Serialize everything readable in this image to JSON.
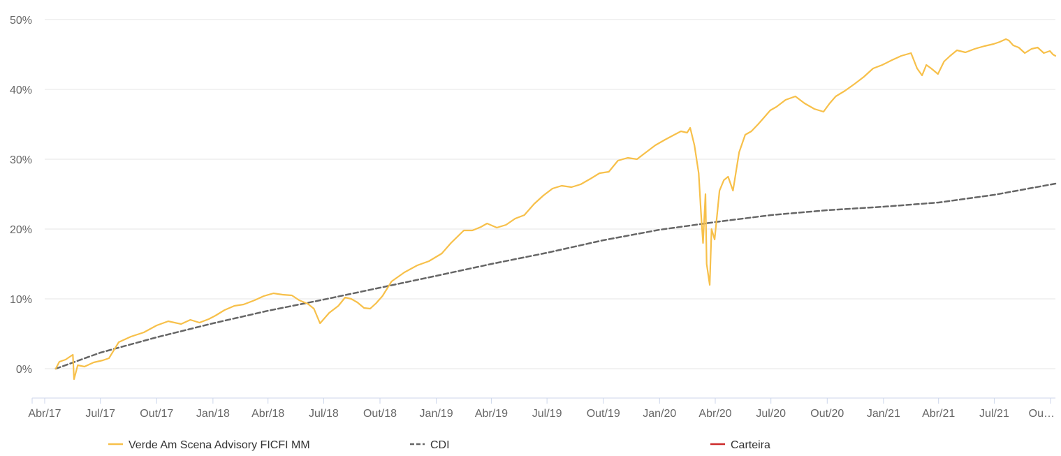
{
  "chart_data": {
    "type": "line",
    "title": "",
    "xlabel": "",
    "ylabel": "",
    "y_tick_labels": [
      "0%",
      "10%",
      "20%",
      "30%",
      "40%",
      "50%"
    ],
    "y_ticks": [
      0,
      10,
      20,
      30,
      40,
      50
    ],
    "ylim": [
      -4.2,
      51
    ],
    "x_tick_labels": [
      "Abr/17",
      "Jul/17",
      "Out/17",
      "Jan/18",
      "Abr/18",
      "Jul/18",
      "Out/18",
      "Jan/19",
      "Abr/19",
      "Jul/19",
      "Out/19",
      "Jan/20",
      "Abr/20",
      "Jul/20",
      "Out/20",
      "Jan/21",
      "Abr/21",
      "Jul/21",
      "Ou…"
    ],
    "x_ticks": [
      "2017-04-01",
      "2017-07-01",
      "2017-10-01",
      "2018-01-01",
      "2018-04-01",
      "2018-07-01",
      "2018-10-01",
      "2019-01-01",
      "2019-04-01",
      "2019-07-01",
      "2019-10-01",
      "2020-01-01",
      "2020-04-01",
      "2020-07-01",
      "2020-10-01",
      "2021-01-01",
      "2021-04-01",
      "2021-07-01",
      "2021-10-01"
    ],
    "xlim": [
      "2017-04-01",
      "2021-10-09"
    ],
    "grid": true,
    "legend_position": "bottom",
    "series": [
      {
        "name": "Verde Am Scena Advisory FICFI MM",
        "color": "#f7c04a",
        "style": "solid",
        "x": [
          "2017-04-19",
          "2017-04-25",
          "2017-05-05",
          "2017-05-17",
          "2017-05-19",
          "2017-05-25",
          "2017-06-05",
          "2017-06-20",
          "2017-07-05",
          "2017-07-15",
          "2017-07-31",
          "2017-08-20",
          "2017-09-10",
          "2017-10-01",
          "2017-10-20",
          "2017-11-10",
          "2017-11-25",
          "2017-12-10",
          "2017-12-25",
          "2018-01-05",
          "2018-01-20",
          "2018-02-05",
          "2018-02-20",
          "2018-03-10",
          "2018-03-25",
          "2018-04-10",
          "2018-04-25",
          "2018-05-10",
          "2018-05-22",
          "2018-06-05",
          "2018-06-15",
          "2018-06-25",
          "2018-07-10",
          "2018-07-25",
          "2018-08-05",
          "2018-08-15",
          "2018-08-25",
          "2018-09-05",
          "2018-09-15",
          "2018-09-25",
          "2018-10-05",
          "2018-10-20",
          "2018-11-10",
          "2018-12-01",
          "2018-12-20",
          "2019-01-10",
          "2019-01-25",
          "2019-02-15",
          "2019-03-01",
          "2019-03-15",
          "2019-03-25",
          "2019-04-10",
          "2019-04-25",
          "2019-05-10",
          "2019-05-25",
          "2019-06-10",
          "2019-06-25",
          "2019-07-10",
          "2019-07-25",
          "2019-08-10",
          "2019-08-25",
          "2019-09-10",
          "2019-09-25",
          "2019-10-10",
          "2019-10-25",
          "2019-11-10",
          "2019-11-25",
          "2019-12-10",
          "2019-12-25",
          "2020-01-10",
          "2020-01-25",
          "2020-02-05",
          "2020-02-15",
          "2020-02-20",
          "2020-02-27",
          "2020-03-05",
          "2020-03-09",
          "2020-03-12",
          "2020-03-16",
          "2020-03-18",
          "2020-03-23",
          "2020-03-26",
          "2020-03-31",
          "2020-04-08",
          "2020-04-15",
          "2020-04-22",
          "2020-04-30",
          "2020-05-10",
          "2020-05-20",
          "2020-05-30",
          "2020-06-10",
          "2020-06-20",
          "2020-06-30",
          "2020-07-10",
          "2020-07-25",
          "2020-08-10",
          "2020-08-25",
          "2020-09-10",
          "2020-09-25",
          "2020-10-05",
          "2020-10-15",
          "2020-10-30",
          "2020-11-15",
          "2020-11-30",
          "2020-12-15",
          "2020-12-30",
          "2021-01-15",
          "2021-01-30",
          "2021-02-15",
          "2021-02-25",
          "2021-03-05",
          "2021-03-12",
          "2021-03-20",
          "2021-03-31",
          "2021-04-10",
          "2021-04-20",
          "2021-05-01",
          "2021-05-15",
          "2021-05-30",
          "2021-06-15",
          "2021-06-30",
          "2021-07-10",
          "2021-07-20",
          "2021-07-25",
          "2021-08-01",
          "2021-08-10",
          "2021-08-20",
          "2021-08-31",
          "2021-09-10",
          "2021-09-20",
          "2021-09-30",
          "2021-10-05",
          "2021-10-09"
        ],
        "values": [
          0.0,
          1.0,
          1.3,
          2.0,
          -1.5,
          0.5,
          0.3,
          0.9,
          1.2,
          1.5,
          3.8,
          4.6,
          5.2,
          6.2,
          6.8,
          6.4,
          7.0,
          6.6,
          7.1,
          7.6,
          8.4,
          9.0,
          9.2,
          9.8,
          10.4,
          10.8,
          10.6,
          10.5,
          9.8,
          9.3,
          8.6,
          6.5,
          8.0,
          9.0,
          10.2,
          10.0,
          9.5,
          8.7,
          8.6,
          9.4,
          10.4,
          12.5,
          13.8,
          14.8,
          15.4,
          16.5,
          18.0,
          19.8,
          19.8,
          20.3,
          20.8,
          20.2,
          20.6,
          21.5,
          22.0,
          23.6,
          24.8,
          25.8,
          26.2,
          26.0,
          26.4,
          27.2,
          28.0,
          28.2,
          29.8,
          30.2,
          30.0,
          31.0,
          32.0,
          32.8,
          33.5,
          34.0,
          33.8,
          34.5,
          32.0,
          28.0,
          22.0,
          18.0,
          25.0,
          15.0,
          12.0,
          20.0,
          18.5,
          25.5,
          27.0,
          27.5,
          25.5,
          31.0,
          33.5,
          34.0,
          35.0,
          36.0,
          37.0,
          37.5,
          38.5,
          39.0,
          38.0,
          37.2,
          36.8,
          38.0,
          39.0,
          39.8,
          40.8,
          41.8,
          43.0,
          43.5,
          44.2,
          44.8,
          45.2,
          43.0,
          42.0,
          43.5,
          43.0,
          42.2,
          44.0,
          44.8,
          45.6,
          45.3,
          45.8,
          46.2,
          46.5,
          46.8,
          47.2,
          47.0,
          46.3,
          46.0,
          45.2,
          45.8,
          46.0,
          45.2,
          45.5,
          45.0,
          44.8
        ]
      },
      {
        "name": "CDI",
        "color": "#666666",
        "style": "dash",
        "x": [
          "2017-04-19",
          "2017-07-01",
          "2017-10-01",
          "2018-01-01",
          "2018-04-01",
          "2018-07-01",
          "2018-10-01",
          "2019-01-01",
          "2019-04-01",
          "2019-07-01",
          "2019-10-01",
          "2020-01-01",
          "2020-04-01",
          "2020-07-01",
          "2020-10-01",
          "2021-01-01",
          "2021-04-01",
          "2021-07-01",
          "2021-10-09"
        ],
        "values": [
          0.0,
          2.3,
          4.5,
          6.5,
          8.3,
          9.9,
          11.6,
          13.3,
          15.0,
          16.6,
          18.4,
          19.9,
          21.0,
          22.0,
          22.7,
          23.2,
          23.8,
          24.9,
          26.5
        ]
      },
      {
        "name": "Carteira",
        "color": "#cc2a2a",
        "style": "solid",
        "x": [],
        "values": []
      }
    ]
  }
}
